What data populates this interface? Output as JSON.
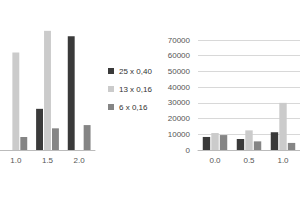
{
  "chart_data": [
    {
      "type": "bar",
      "categories": [
        "1.0",
        "1.5",
        "2.0"
      ],
      "series": [
        {
          "name": "25 x 0,40",
          "color": "#3a3a3a",
          "values": [
            null,
            38,
            105
          ]
        },
        {
          "name": "13 x 0,16",
          "color": "#cbcbcb",
          "values": [
            90,
            110,
            null
          ]
        },
        {
          "name": "6 x 0,16",
          "color": "#858585",
          "values": [
            12,
            20,
            23
          ]
        }
      ],
      "ylim": [
        0,
        120
      ],
      "tick_labels": "x",
      "legend": "right"
    },
    {
      "type": "bar",
      "categories": [
        "0.0",
        "0.5",
        "1.0"
      ],
      "series": [
        {
          "name": "25 x 0,40",
          "color": "#3a3a3a",
          "values": [
            8300,
            7000,
            11300
          ]
        },
        {
          "name": "13 x 0,16",
          "color": "#cbcbcb",
          "values": [
            10800,
            12500,
            30000
          ]
        },
        {
          "name": "6 x 0,16",
          "color": "#858585",
          "values": [
            9500,
            5500,
            4500
          ]
        }
      ],
      "ylim": [
        0,
        70000
      ],
      "yticks": [
        0,
        10000,
        20000,
        30000,
        40000,
        50000,
        60000,
        70000
      ],
      "grid": true
    }
  ]
}
